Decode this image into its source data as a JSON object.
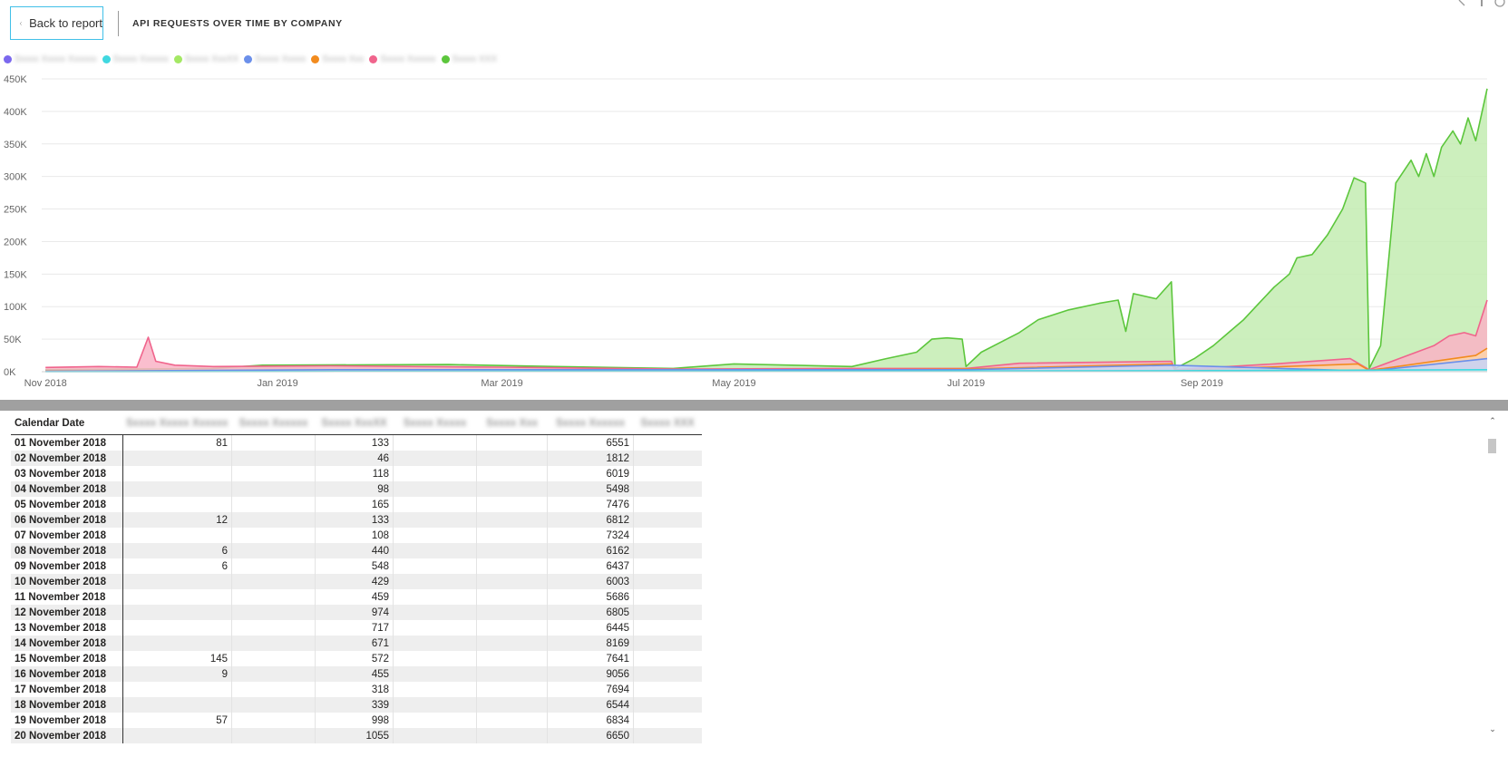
{
  "header": {
    "back_label": "Back to report",
    "title": "API REQUESTS OVER TIME BY COMPANY"
  },
  "legend": {
    "items": [
      {
        "label": "Sxxxx Xxxxx Xxxxxx",
        "color": "#7b68ee"
      },
      {
        "label": "Sxxxx Xxxxxx",
        "color": "#40d8e0"
      },
      {
        "label": "Sxxxx XxxXX",
        "color": "#a4e864"
      },
      {
        "label": "Sxxxx Xxxxx",
        "color": "#6b8fea"
      },
      {
        "label": "Sxxxx Xxx",
        "color": "#f28b1e"
      },
      {
        "label": "Sxxxx Xxxxxx",
        "color": "#f0648c"
      },
      {
        "label": "Sxxxx XXX",
        "color": "#5cc63c"
      }
    ]
  },
  "chart_data": {
    "type": "area",
    "title": "API REQUESTS OVER TIME BY COMPANY",
    "xlabel": "",
    "ylabel": "",
    "ylim": [
      0,
      450000
    ],
    "y_ticks": [
      "0K",
      "50K",
      "100K",
      "150K",
      "200K",
      "250K",
      "300K",
      "350K",
      "400K",
      "450K"
    ],
    "x_ticks": [
      "Nov 2018",
      "Jan 2019",
      "Mar 2019",
      "May 2019",
      "Jul 2019",
      "Sep 2019"
    ],
    "x_tick_dates": [
      "2018-11-01",
      "2019-01-01",
      "2019-03-01",
      "2019-05-01",
      "2019-07-01",
      "2019-09-01"
    ],
    "grid": true,
    "legend": "top-left",
    "series": [
      {
        "name": "Sxxxx XXX",
        "color": "#5cc63c",
        "fill": "#c3ecb2",
        "points": [
          [
            "2018-11-01",
            3000
          ],
          [
            "2018-12-15",
            5000
          ],
          [
            "2018-12-28",
            10000
          ],
          [
            "2019-02-15",
            11000
          ],
          [
            "2019-03-15",
            8000
          ],
          [
            "2019-04-15",
            5000
          ],
          [
            "2019-05-01",
            12000
          ],
          [
            "2019-06-01",
            8000
          ],
          [
            "2019-06-10",
            20000
          ],
          [
            "2019-06-18",
            30000
          ],
          [
            "2019-06-22",
            50000
          ],
          [
            "2019-06-26",
            52000
          ],
          [
            "2019-06-30",
            50000
          ],
          [
            "2019-07-01",
            8000
          ],
          [
            "2019-07-05",
            30000
          ],
          [
            "2019-07-10",
            45000
          ],
          [
            "2019-07-15",
            60000
          ],
          [
            "2019-07-20",
            80000
          ],
          [
            "2019-07-28",
            95000
          ],
          [
            "2019-08-05",
            105000
          ],
          [
            "2019-08-10",
            110000
          ],
          [
            "2019-08-12",
            62000
          ],
          [
            "2019-08-14",
            120000
          ],
          [
            "2019-08-20",
            112000
          ],
          [
            "2019-08-24",
            138000
          ],
          [
            "2019-08-25",
            5000
          ],
          [
            "2019-08-30",
            20000
          ],
          [
            "2019-09-04",
            40000
          ],
          [
            "2019-09-08",
            60000
          ],
          [
            "2019-09-12",
            80000
          ],
          [
            "2019-09-16",
            105000
          ],
          [
            "2019-09-20",
            130000
          ],
          [
            "2019-09-24",
            150000
          ],
          [
            "2019-09-26",
            175000
          ],
          [
            "2019-09-30",
            180000
          ],
          [
            "2019-10-04",
            210000
          ],
          [
            "2019-10-08",
            250000
          ],
          [
            "2019-10-11",
            298000
          ],
          [
            "2019-10-14",
            290000
          ],
          [
            "2019-10-15",
            5000
          ],
          [
            "2019-10-18",
            40000
          ],
          [
            "2019-10-22",
            290000
          ],
          [
            "2019-10-26",
            325000
          ],
          [
            "2019-10-28",
            300000
          ],
          [
            "2019-10-30",
            335000
          ],
          [
            "2019-11-01",
            300000
          ],
          [
            "2019-11-03",
            345000
          ],
          [
            "2019-11-06",
            370000
          ],
          [
            "2019-11-08",
            350000
          ],
          [
            "2019-11-10",
            390000
          ],
          [
            "2019-11-12",
            355000
          ],
          [
            "2019-11-15",
            435000
          ]
        ]
      },
      {
        "name": "Sxxxx Xxxxxx",
        "color": "#f0648c",
        "fill": "#f9b3c5",
        "points": [
          [
            "2018-11-01",
            6500
          ],
          [
            "2018-11-15",
            8000
          ],
          [
            "2018-11-25",
            7000
          ],
          [
            "2018-11-28",
            53000
          ],
          [
            "2018-11-30",
            16000
          ],
          [
            "2018-12-05",
            10000
          ],
          [
            "2018-12-15",
            8000
          ],
          [
            "2019-01-15",
            9000
          ],
          [
            "2019-03-01",
            7000
          ],
          [
            "2019-04-15",
            4000
          ],
          [
            "2019-06-01",
            5000
          ],
          [
            "2019-07-01",
            5000
          ],
          [
            "2019-07-15",
            13000
          ],
          [
            "2019-08-24",
            16000
          ],
          [
            "2019-08-25",
            3000
          ],
          [
            "2019-09-20",
            12000
          ],
          [
            "2019-10-10",
            20000
          ],
          [
            "2019-10-15",
            3000
          ],
          [
            "2019-11-01",
            40000
          ],
          [
            "2019-11-05",
            55000
          ],
          [
            "2019-11-09",
            60000
          ],
          [
            "2019-11-12",
            55000
          ],
          [
            "2019-11-15",
            110000
          ]
        ]
      },
      {
        "name": "Sxxxx Xxx",
        "color": "#f28b1e",
        "fill": "#fbd3a9",
        "points": [
          [
            "2018-11-01",
            1000
          ],
          [
            "2019-01-15",
            2000
          ],
          [
            "2019-05-01",
            2000
          ],
          [
            "2019-07-01",
            4000
          ],
          [
            "2019-08-24",
            12000
          ],
          [
            "2019-08-25",
            2000
          ],
          [
            "2019-10-12",
            12000
          ],
          [
            "2019-10-15",
            2000
          ],
          [
            "2019-11-12",
            25000
          ],
          [
            "2019-11-15",
            36000
          ]
        ]
      },
      {
        "name": "Sxxxx Xxxxx",
        "color": "#6b8fea",
        "fill": "#c7d4f7",
        "points": [
          [
            "2018-11-01",
            500
          ],
          [
            "2019-01-15",
            3000
          ],
          [
            "2019-07-01",
            3000
          ],
          [
            "2019-08-24",
            10000
          ],
          [
            "2019-10-15",
            1000
          ],
          [
            "2019-11-15",
            20000
          ]
        ]
      },
      {
        "name": "Sxxxx Xxxxxx",
        "color": "#40d8e0",
        "fill": "#bff0f3",
        "points": [
          [
            "2018-11-01",
            0
          ],
          [
            "2019-08-24",
            1500
          ],
          [
            "2019-11-15",
            3000
          ]
        ]
      }
    ]
  },
  "table": {
    "date_header": "Calendar Date",
    "columns": [
      "Sxxxx Xxxxx Xxxxxx",
      "Sxxxx Xxxxxx",
      "Sxxxx XxxXX",
      "Sxxxx Xxxxx",
      "Sxxxx Xxx",
      "Sxxxx Xxxxxx",
      "Sxxxx XXX"
    ],
    "rows": [
      {
        "date": "01 November 2018",
        "c1": "81",
        "c3": "133",
        "c6": "6551"
      },
      {
        "date": "02 November 2018",
        "c1": "",
        "c3": "46",
        "c6": "1812"
      },
      {
        "date": "03 November 2018",
        "c1": "",
        "c3": "118",
        "c6": "6019"
      },
      {
        "date": "04 November 2018",
        "c1": "",
        "c3": "98",
        "c6": "5498"
      },
      {
        "date": "05 November 2018",
        "c1": "",
        "c3": "165",
        "c6": "7476"
      },
      {
        "date": "06 November 2018",
        "c1": "12",
        "c3": "133",
        "c6": "6812"
      },
      {
        "date": "07 November 2018",
        "c1": "",
        "c3": "108",
        "c6": "7324"
      },
      {
        "date": "08 November 2018",
        "c1": "6",
        "c3": "440",
        "c6": "6162"
      },
      {
        "date": "09 November 2018",
        "c1": "6",
        "c3": "548",
        "c6": "6437"
      },
      {
        "date": "10 November 2018",
        "c1": "",
        "c3": "429",
        "c6": "6003"
      },
      {
        "date": "11 November 2018",
        "c1": "",
        "c3": "459",
        "c6": "5686"
      },
      {
        "date": "12 November 2018",
        "c1": "",
        "c3": "974",
        "c6": "6805"
      },
      {
        "date": "13 November 2018",
        "c1": "",
        "c3": "717",
        "c6": "6445"
      },
      {
        "date": "14 November 2018",
        "c1": "",
        "c3": "671",
        "c6": "8169"
      },
      {
        "date": "15 November 2018",
        "c1": "145",
        "c3": "572",
        "c6": "7641"
      },
      {
        "date": "16 November 2018",
        "c1": "9",
        "c3": "455",
        "c6": "9056"
      },
      {
        "date": "17 November 2018",
        "c1": "",
        "c3": "318",
        "c6": "7694"
      },
      {
        "date": "18 November 2018",
        "c1": "",
        "c3": "339",
        "c6": "6544"
      },
      {
        "date": "19 November 2018",
        "c1": "57",
        "c3": "998",
        "c6": "6834"
      },
      {
        "date": "20 November 2018",
        "c1": "",
        "c3": "1055",
        "c6": "6650"
      }
    ]
  },
  "scrollbar": {
    "up_glyph": "⌃",
    "down_glyph": "⌄"
  }
}
